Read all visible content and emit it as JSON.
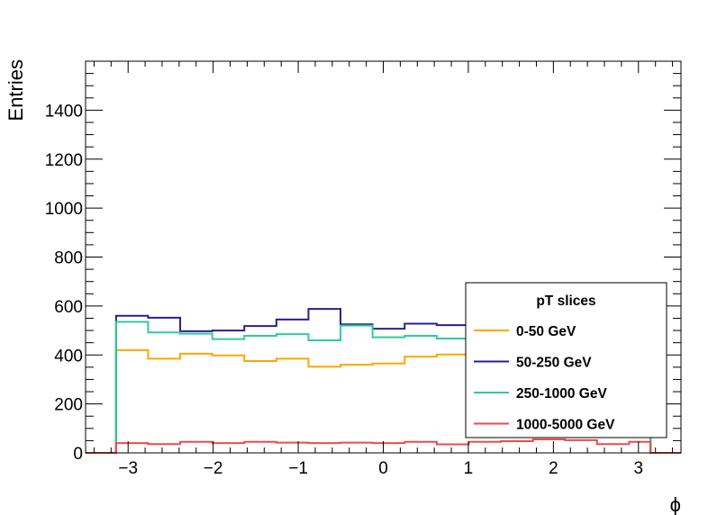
{
  "chart_data": {
    "type": "line",
    "drawstyle": "step-histogram",
    "xlabel": "ϕ",
    "ylabel": "Entries",
    "xlim": [
      -3.5,
      3.5
    ],
    "ylim": [
      0,
      1600
    ],
    "x_ticks": [
      -3,
      -2,
      -1,
      0,
      1,
      2,
      3
    ],
    "x_tick_labels": [
      "−3",
      "−2",
      "−1",
      "0",
      "1",
      "2",
      "3"
    ],
    "y_ticks": [
      0,
      200,
      400,
      600,
      800,
      1000,
      1200,
      1400
    ],
    "y_tick_labels": [
      "0",
      "200",
      "400",
      "600",
      "800",
      "1000",
      "1200",
      "1400"
    ],
    "bin_edges": [
      -3.1416,
      -2.7646,
      -2.3876,
      -2.0106,
      -1.6336,
      -1.2566,
      -0.8796,
      -0.5027,
      -0.1257,
      0.2513,
      0.6283,
      1.0053,
      1.3823,
      1.7593,
      2.1363,
      2.5133,
      2.8903,
      3.1416
    ],
    "grid": false,
    "legend": {
      "title": "pT slices",
      "position": "bottom-right"
    },
    "series": [
      {
        "name": "0-50 GeV",
        "color": "#ffa500",
        "values": [
          420,
          385,
          405,
          398,
          375,
          385,
          352,
          360,
          365,
          393,
          402,
          355,
          352,
          355,
          352,
          355,
          355
        ]
      },
      {
        "name": "50-250 GeV",
        "color": "#2b1d96",
        "values": [
          560,
          552,
          497,
          500,
          518,
          545,
          588,
          525,
          507,
          528,
          522,
          548,
          548,
          545,
          548,
          545,
          545
        ]
      },
      {
        "name": "250-1000 GeV",
        "color": "#2fcc9b",
        "values": [
          535,
          492,
          487,
          465,
          478,
          485,
          460,
          520,
          472,
          478,
          467,
          512,
          512,
          510,
          512,
          510,
          510
        ]
      },
      {
        "name": "1000-5000 GeV",
        "color": "#f04a4a",
        "values": [
          40,
          36,
          45,
          40,
          45,
          42,
          40,
          42,
          40,
          45,
          35,
          45,
          48,
          55,
          52,
          36,
          45
        ]
      }
    ]
  }
}
